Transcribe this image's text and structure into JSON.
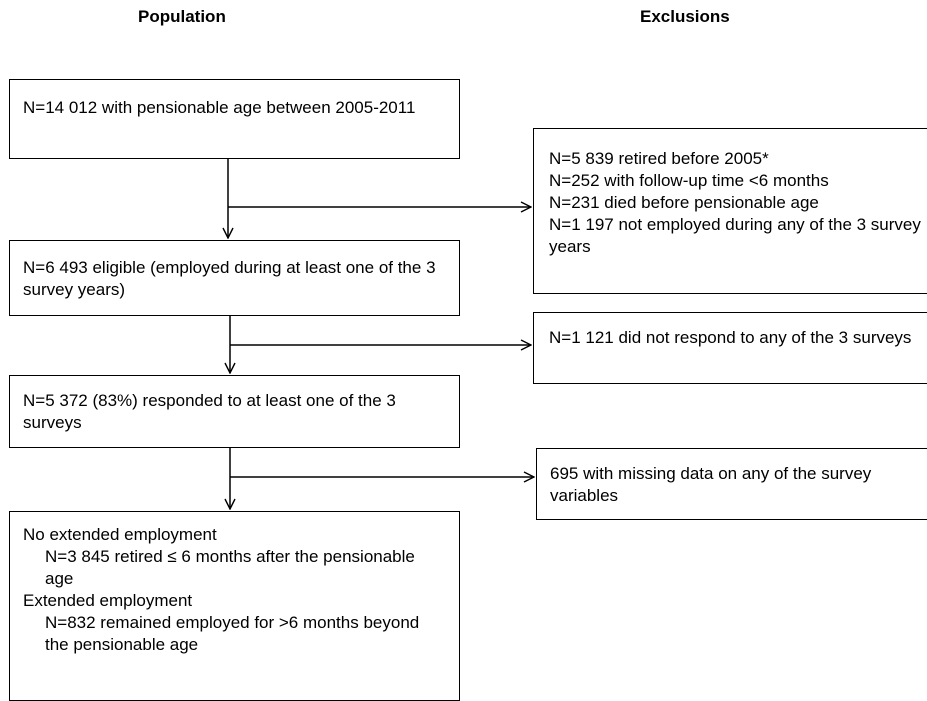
{
  "headings": {
    "population": "Population",
    "exclusions": "Exclusions"
  },
  "population_boxes": {
    "total": "N=14 012 with pensionable age between 2005-2011",
    "eligible": "N=6 493 eligible (employed during at least one of the 3 survey years)",
    "responded": "N=5 372 (83%) responded to at least one of the 3 surveys",
    "final": {
      "group1_title": "No extended employment",
      "group1_detail": "N=3 845 retired ≤ 6 months after the pensionable age",
      "group2_title": "Extended employment",
      "group2_detail": "N=832 remained employed for >6 months beyond the pensionable age"
    }
  },
  "exclusion_boxes": {
    "first": {
      "line1": "N=5 839 retired before 2005*",
      "line2": "N=252 with follow-up time <6 months",
      "line3": "N=231 died before pensionable age",
      "line4": "N=1 197 not employed during any of the 3 survey years"
    },
    "second": "N=1 121 did not respond to any of the 3 surveys",
    "third": "695 with missing data on any of the survey variables"
  }
}
